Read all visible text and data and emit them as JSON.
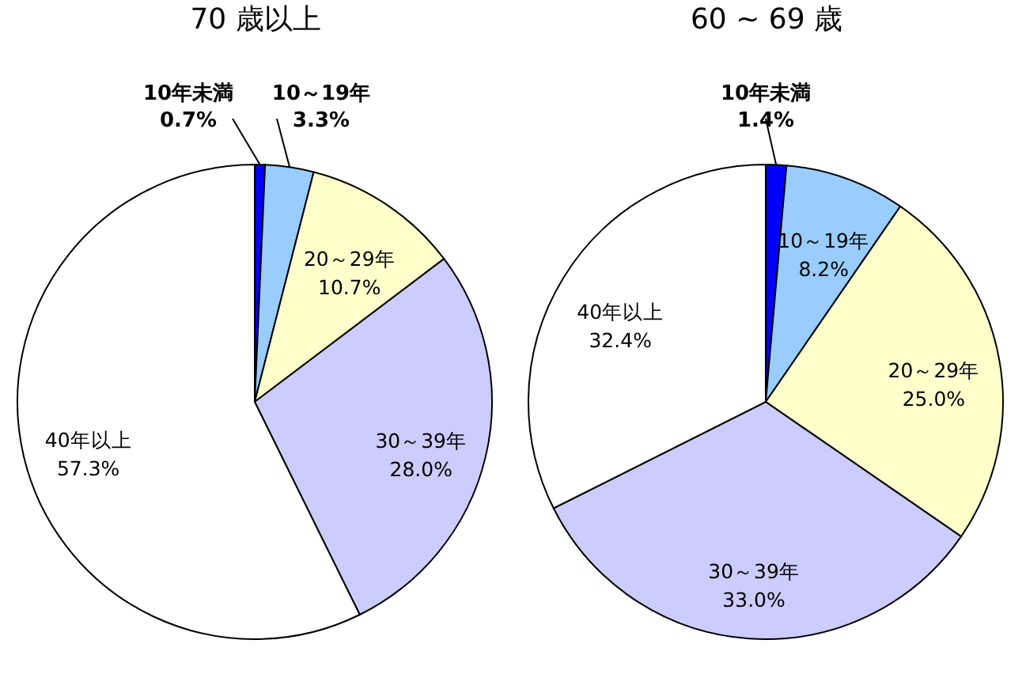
{
  "chart_data": [
    {
      "type": "pie",
      "title": "70 歳以上",
      "categories": [
        "10年未満",
        "10～19年",
        "20～29年",
        "30～39年",
        "40年以上"
      ],
      "values": [
        0.7,
        3.3,
        10.7,
        28.0,
        57.3
      ],
      "value_labels": [
        "0.7%",
        "3.3%",
        "10.7%",
        "28.0%",
        "57.3%"
      ],
      "colors": [
        "#0000ff",
        "#99ccff",
        "#ffffcc",
        "#ccccff",
        "#ffffff"
      ]
    },
    {
      "type": "pie",
      "title": "60 ~ 69 歳",
      "categories": [
        "10年未満",
        "10～19年",
        "20～29年",
        "30～39年",
        "40年以上"
      ],
      "values": [
        1.4,
        8.2,
        25.0,
        33.0,
        32.4
      ],
      "value_labels": [
        "1.4%",
        "8.2%",
        "25.0%",
        "33.0%",
        "32.4%"
      ],
      "colors": [
        "#0000ff",
        "#99ccff",
        "#ffffcc",
        "#ccccff",
        "#ffffff"
      ]
    }
  ]
}
